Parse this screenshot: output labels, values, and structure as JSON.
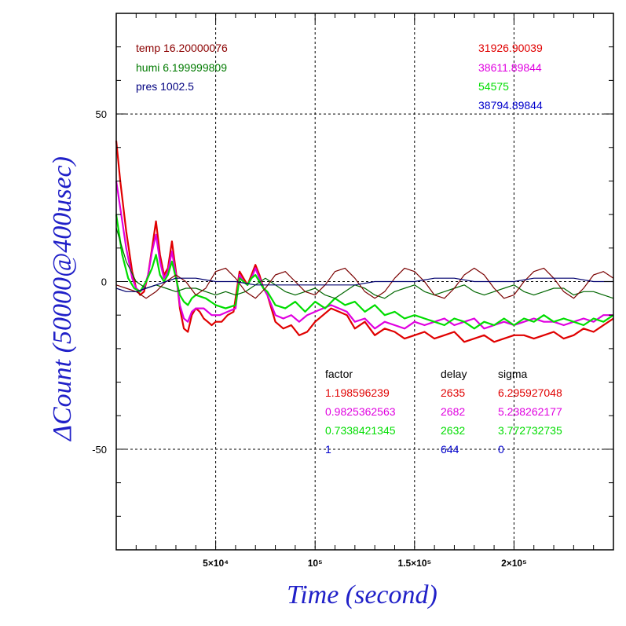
{
  "chart_data": {
    "type": "line",
    "xlabel": "Time (second)",
    "ylabel": "ΔCount (50000@400usec)",
    "xlim": [
      0,
      250000
    ],
    "ylim": [
      -80,
      80
    ],
    "grid": true,
    "x_ticks": [
      {
        "value": 50000,
        "label": "5×10⁴"
      },
      {
        "value": 100000,
        "label": "10⁵"
      },
      {
        "value": 150000,
        "label": "1.5×10⁵"
      },
      {
        "value": 200000,
        "label": "2×10⁵"
      }
    ],
    "y_ticks": [
      {
        "value": 50,
        "label": "50"
      },
      {
        "value": 0,
        "label": "0"
      },
      {
        "value": -50,
        "label": "-50"
      }
    ],
    "info_top_left": [
      {
        "text": "temp 16.20000076",
        "color": "#8b0000"
      },
      {
        "text": "humi 6.199999809",
        "color": "#007a00"
      },
      {
        "text": "pres 1002.5",
        "color": "#000080"
      }
    ],
    "info_top_right": [
      {
        "text": "31926.90039",
        "color": "#e00000"
      },
      {
        "text": "38611.89844",
        "color": "#e000e0"
      },
      {
        "text": "54575",
        "color": "#00dd00"
      },
      {
        "text": "38794.89844",
        "color": "#0000cc"
      }
    ],
    "table": {
      "headers": [
        "factor",
        "delay",
        "sigma"
      ],
      "rows": [
        {
          "factor": "1.198596239",
          "delay": "2635",
          "sigma": "6.295927048",
          "color": "#e00000"
        },
        {
          "factor": "0.9825362563",
          "delay": "2682",
          "sigma": "5.238262177",
          "color": "#e000e0"
        },
        {
          "factor": "0.7338421345",
          "delay": "2632",
          "sigma": "3.772732735",
          "color": "#00dd00"
        },
        {
          "factor": "1",
          "delay": "644",
          "sigma": "0",
          "color": "#0000cc"
        }
      ]
    },
    "series": [
      {
        "color": "#e00000",
        "x": [
          0,
          2000,
          5000,
          8000,
          10000,
          12000,
          14000,
          16000,
          18000,
          20000,
          22000,
          24000,
          26000,
          28000,
          30000,
          32000,
          34000,
          36000,
          38000,
          40000,
          42000,
          44000,
          46000,
          48000,
          50000,
          53000,
          56000,
          59000,
          62000,
          64000,
          66000,
          68000,
          70000,
          72000,
          74000,
          76000,
          78000,
          80000,
          84000,
          88000,
          92000,
          96000,
          100000,
          104000,
          108000,
          112000,
          116000,
          120000,
          125000,
          130000,
          135000,
          140000,
          145000,
          150000,
          155000,
          160000,
          165000,
          170000,
          175000,
          180000,
          185000,
          190000,
          195000,
          200000,
          205000,
          210000,
          215000,
          220000,
          225000,
          230000,
          235000,
          240000,
          245000,
          250000
        ],
        "values": [
          42,
          30,
          15,
          3,
          -2,
          -4,
          -3,
          2,
          10,
          18,
          8,
          2,
          4,
          12,
          3,
          -8,
          -14,
          -15,
          -10,
          -8,
          -9,
          -11,
          -12,
          -13,
          -12,
          -12,
          -10,
          -9,
          3,
          1,
          -1,
          2,
          5,
          2,
          -2,
          -4,
          -8,
          -12,
          -14,
          -13,
          -16,
          -15,
          -12,
          -10,
          -8,
          -9,
          -10,
          -14,
          -12,
          -16,
          -14,
          -15,
          -17,
          -16,
          -15,
          -17,
          -16,
          -15,
          -18,
          -17,
          -16,
          -18,
          -17,
          -16,
          -16,
          -17,
          -16,
          -15,
          -17,
          -16,
          -14,
          -15,
          -13,
          -11
        ]
      },
      {
        "color": "#e000e0",
        "x": [
          0,
          2000,
          5000,
          8000,
          10000,
          12000,
          14000,
          16000,
          18000,
          20000,
          22000,
          24000,
          26000,
          28000,
          30000,
          32000,
          34000,
          36000,
          38000,
          40000,
          44000,
          48000,
          52000,
          56000,
          60000,
          62000,
          64000,
          66000,
          68000,
          70000,
          72000,
          74000,
          76000,
          78000,
          80000,
          84000,
          88000,
          92000,
          96000,
          100000,
          104000,
          108000,
          112000,
          116000,
          120000,
          125000,
          130000,
          135000,
          140000,
          145000,
          150000,
          155000,
          160000,
          165000,
          170000,
          175000,
          180000,
          185000,
          190000,
          195000,
          200000,
          205000,
          210000,
          215000,
          220000,
          225000,
          230000,
          235000,
          240000,
          245000,
          250000
        ],
        "values": [
          30,
          22,
          10,
          1,
          -2,
          -3,
          -2,
          2,
          9,
          14,
          6,
          1,
          3,
          9,
          2,
          -7,
          -11,
          -12,
          -9,
          -8,
          -8,
          -10,
          -10,
          -9,
          -8,
          2,
          0,
          -1,
          1,
          4,
          1,
          -2,
          -4,
          -7,
          -10,
          -11,
          -10,
          -12,
          -10,
          -9,
          -8,
          -7,
          -8,
          -9,
          -12,
          -11,
          -14,
          -12,
          -13,
          -14,
          -12,
          -13,
          -12,
          -11,
          -13,
          -12,
          -11,
          -14,
          -13,
          -12,
          -13,
          -12,
          -11,
          -12,
          -12,
          -13,
          -12,
          -11,
          -12,
          -10,
          -10
        ]
      },
      {
        "color": "#00dd00",
        "x": [
          0,
          3000,
          6000,
          9000,
          12000,
          15000,
          18000,
          20000,
          22000,
          24000,
          26000,
          28000,
          30000,
          32000,
          34000,
          36000,
          38000,
          40000,
          45000,
          50000,
          55000,
          60000,
          62000,
          64000,
          66000,
          68000,
          70000,
          72000,
          74000,
          76000,
          78000,
          80000,
          85000,
          90000,
          95000,
          100000,
          105000,
          110000,
          115000,
          120000,
          125000,
          130000,
          135000,
          140000,
          145000,
          150000,
          155000,
          160000,
          165000,
          170000,
          175000,
          180000,
          185000,
          190000,
          195000,
          200000,
          205000,
          210000,
          215000,
          220000,
          225000,
          230000,
          235000,
          240000,
          245000,
          250000
        ],
        "values": [
          20,
          8,
          1,
          -2,
          -3,
          0,
          4,
          8,
          2,
          0,
          2,
          6,
          1,
          -4,
          -6,
          -7,
          -5,
          -4,
          -5,
          -7,
          -8,
          -7,
          1,
          0,
          -1,
          1,
          2,
          0,
          -2,
          -3,
          -5,
          -7,
          -8,
          -6,
          -9,
          -6,
          -8,
          -5,
          -7,
          -6,
          -9,
          -7,
          -10,
          -9,
          -11,
          -10,
          -11,
          -12,
          -13,
          -11,
          -12,
          -14,
          -12,
          -13,
          -11,
          -13,
          -11,
          -12,
          -10,
          -12,
          -11,
          -12,
          -13,
          -11,
          -12,
          -10
        ]
      },
      {
        "color": "#006600",
        "x": [
          0,
          5000,
          10000,
          15000,
          20000,
          25000,
          30000,
          35000,
          40000,
          45000,
          50000,
          55000,
          60000,
          65000,
          70000,
          75000,
          80000,
          85000,
          90000,
          95000,
          100000,
          105000,
          110000,
          115000,
          120000,
          125000,
          130000,
          135000,
          140000,
          145000,
          150000,
          155000,
          160000,
          165000,
          170000,
          175000,
          180000,
          185000,
          190000,
          195000,
          200000,
          205000,
          210000,
          215000,
          220000,
          225000,
          230000,
          235000,
          240000,
          245000,
          250000
        ],
        "values": [
          16,
          6,
          0,
          -2,
          -1,
          -2,
          -3,
          -2,
          -2,
          -3,
          -4,
          -3,
          -4,
          -3,
          -1,
          1,
          -1,
          -3,
          -4,
          -3,
          -2,
          -4,
          -5,
          -3,
          -1,
          -2,
          -4,
          -5,
          -3,
          -2,
          -1,
          -3,
          -4,
          -3,
          -2,
          -1,
          -3,
          -4,
          -3,
          -2,
          -1,
          -3,
          -4,
          -3,
          -2,
          -2,
          -4,
          -3,
          -3,
          -4,
          -5
        ]
      },
      {
        "color": "#7a0000",
        "x": [
          0,
          5000,
          10000,
          15000,
          20000,
          25000,
          30000,
          35000,
          40000,
          45000,
          50000,
          55000,
          60000,
          65000,
          70000,
          75000,
          80000,
          85000,
          90000,
          95000,
          100000,
          105000,
          110000,
          115000,
          120000,
          125000,
          130000,
          135000,
          140000,
          145000,
          150000,
          155000,
          160000,
          165000,
          170000,
          175000,
          180000,
          185000,
          190000,
          195000,
          200000,
          205000,
          210000,
          215000,
          220000,
          225000,
          230000,
          235000,
          240000,
          245000,
          250000
        ],
        "values": [
          -1,
          -2,
          -3,
          -5,
          -3,
          0,
          2,
          0,
          -4,
          -2,
          3,
          4,
          1,
          -3,
          -5,
          -2,
          2,
          3,
          0,
          -3,
          -4,
          -1,
          3,
          4,
          1,
          -3,
          -5,
          -3,
          1,
          4,
          3,
          0,
          -4,
          -5,
          -2,
          2,
          4,
          2,
          -2,
          -5,
          -4,
          0,
          3,
          4,
          1,
          -3,
          -5,
          -2,
          2,
          3,
          1
        ]
      },
      {
        "color": "#00006e",
        "x": [
          0,
          5000,
          10000,
          15000,
          20000,
          25000,
          30000,
          35000,
          40000,
          50000,
          60000,
          70000,
          80000,
          90000,
          100000,
          110000,
          120000,
          130000,
          140000,
          150000,
          160000,
          170000,
          180000,
          190000,
          200000,
          210000,
          220000,
          230000,
          240000,
          250000
        ],
        "values": [
          -2,
          -3,
          -3,
          -2,
          -1,
          0,
          1,
          1,
          1,
          0,
          0,
          -1,
          -1,
          -1,
          -1,
          -1,
          -1,
          0,
          0,
          0,
          1,
          1,
          0,
          0,
          0,
          1,
          1,
          1,
          0,
          0
        ]
      }
    ]
  }
}
